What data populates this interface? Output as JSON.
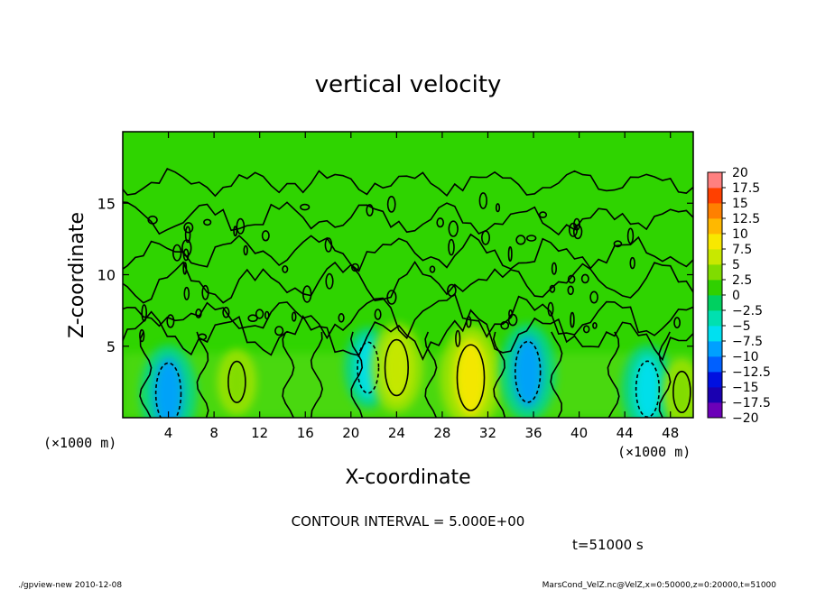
{
  "chart_data": {
    "type": "heatmap",
    "title": "vertical velocity",
    "xlabel": "X-coordinate",
    "ylabel": "Z-coordinate",
    "x_unit_left": "(×1000 m)",
    "x_unit_right": "(×1000 m)",
    "xlim": [
      0,
      50
    ],
    "ylim": [
      0,
      20
    ],
    "xticks": [
      4,
      8,
      12,
      16,
      20,
      24,
      28,
      32,
      36,
      40,
      44,
      48
    ],
    "yticks": [
      5,
      10,
      15
    ],
    "colorbar": {
      "levels": [
        -20,
        -17.5,
        -15,
        -12.5,
        -10,
        -7.5,
        -5,
        -2.5,
        0,
        2.5,
        5,
        7.5,
        10,
        12.5,
        15,
        17.5,
        20
      ],
      "labels": [
        "20",
        "17.5",
        "15",
        "12.5",
        "10",
        "7.5",
        "5",
        "2.5",
        "0",
        "−2.5",
        "−5",
        "−7.5",
        "−10",
        "−12.5",
        "−15",
        "−17.5",
        "−20"
      ],
      "colors": [
        "#6b00b8",
        "#1a00b0",
        "#0010e0",
        "#0060ff",
        "#00a0ff",
        "#00e0f0",
        "#00e0b0",
        "#00d060",
        "#30d000",
        "#80dc00",
        "#c8e800",
        "#f8e800",
        "#ffb800",
        "#ff8000",
        "#ff4000",
        "#ff8080"
      ]
    },
    "features": [
      {
        "x": 4,
        "z": 1.7,
        "value": -8,
        "kind": "downdraft"
      },
      {
        "x": 10,
        "z": 2.5,
        "value": 4,
        "kind": "updraft"
      },
      {
        "x": 21.5,
        "z": 3.5,
        "value": -6,
        "kind": "downdraft"
      },
      {
        "x": 24,
        "z": 3.5,
        "value": 7,
        "kind": "updraft"
      },
      {
        "x": 30.5,
        "z": 2.8,
        "value": 9,
        "kind": "updraft"
      },
      {
        "x": 35.5,
        "z": 3.2,
        "value": -8,
        "kind": "downdraft"
      },
      {
        "x": 46,
        "z": 2.0,
        "value": -7,
        "kind": "downdraft"
      },
      {
        "x": 49,
        "z": 1.8,
        "value": 4,
        "kind": "updraft"
      }
    ]
  },
  "annotations": {
    "contour_interval": "CONTOUR INTERVAL = 5.000E+00",
    "time": "t=51000 s",
    "footer_left": "./gpview-new   2010-12-08",
    "footer_right": "MarsCond_VelZ.nc@VelZ,x=0:50000,z=0:20000,t=51000"
  }
}
